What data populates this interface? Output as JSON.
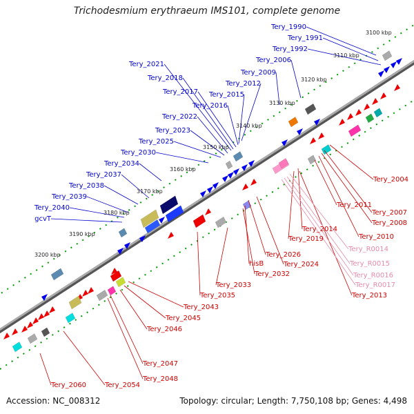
{
  "title": "Trichodesmium erythraeum IMS101, complete genome",
  "footer": {
    "accession": "Accession: NC_008312",
    "stats": "Topology: circular; Length: 7,750,108 bp; Genes: 4,498"
  },
  "kbp_labels": [
    "3100 kbp",
    "3110 kbp",
    "3120 kbp",
    "3130 kbp",
    "3140 kbp",
    "3150 kbp",
    "3160 kbp",
    "3170 kbp",
    "3180 kbp",
    "3190 kbp",
    "3200 kbp"
  ],
  "labels_blue": [
    "Tery_1990",
    "Tery_1991",
    "Tery_1992",
    "Tery_2006",
    "Tery_2009",
    "Tery_2012",
    "Tery_2015",
    "Tery_2016",
    "Tery_2017",
    "Tery_2018",
    "Tery_2021",
    "Tery_2022",
    "Tery_2023",
    "Tery_2025",
    "Tery_2030",
    "Tery_2034",
    "Tery_2037",
    "Tery_2038",
    "Tery_2039",
    "Tery_2040",
    "gcvT"
  ],
  "labels_red": [
    "Tery_2004",
    "Tery_2007",
    "Tery_2008",
    "Tery_2010",
    "Tery_2011",
    "Tery_2014",
    "Tery_2019",
    "Tery_2024",
    "Tery_2026",
    "hisB",
    "Tery_2032",
    "Tery_2033",
    "Tery_2035",
    "Tery_2043",
    "Tery_2045",
    "Tery_2046",
    "Tery_2047",
    "Tery_2048",
    "Tery_2054",
    "Tery_2060",
    "Tery_2013"
  ],
  "labels_pink": [
    "Tery_R0014",
    "Tery_R0015",
    "Tery_R0016",
    "Tery_R0017"
  ],
  "colors": {
    "forward": "#0000ee",
    "reverse": "#ee0000",
    "rna": "#ff99cc",
    "axis": "#888888",
    "ticks": "#009900",
    "label_blue": "#0000cc",
    "label_red": "#cc0000",
    "label_pink": "#e58ca8"
  }
}
